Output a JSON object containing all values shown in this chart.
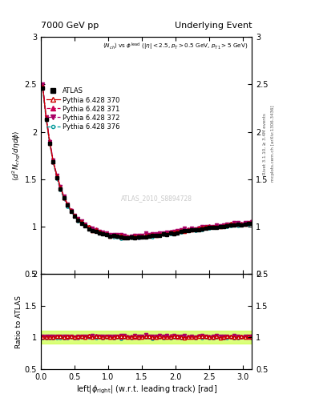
{
  "title_left": "7000 GeV pp",
  "title_right": "Underlying Event",
  "subtitle": "$\\langle N_{ch}\\rangle$ vs $\\phi^{\\rm lead}$ ($|\\eta| < 2.5, p_T > 0.5$ GeV, $p_{T1} > 5$ GeV)",
  "ylabel_main": "$\\langle d^2 N_{chg}/d\\eta d\\phi \\rangle$",
  "ylabel_ratio": "Ratio to ATLAS",
  "xlabel": "left$|\\phi_{\\rm right}|$ (w.r.t. leading track) [rad]",
  "watermark": "ATLAS_2010_S8894728",
  "right_label1": "Rivet 3.1.10, ≥ 3.4M events",
  "right_label2": "mcplots.cern.ch [arXiv:1306.3436]",
  "ylim_main": [
    0.5,
    3.0
  ],
  "ylim_ratio": [
    0.5,
    2.0
  ],
  "xlim": [
    0.0,
    3.14159
  ],
  "ratio_band_lo": 0.9,
  "ratio_band_hi": 1.1,
  "ratio_band_color": "#ccff44",
  "ratio_band_alpha": 0.7,
  "series_labels": [
    "ATLAS",
    "Pythia 6.428 370",
    "Pythia 6.428 371",
    "Pythia 6.428 372",
    "Pythia 6.428 376"
  ],
  "series_colors": [
    "#000000",
    "#cc0000",
    "#cc0055",
    "#aa0066",
    "#009999"
  ],
  "series_markers": [
    "s",
    "^",
    "^",
    "v",
    "o"
  ],
  "series_linestyles": [
    "none",
    "-",
    "--",
    "-.",
    "--"
  ],
  "series_filled": [
    true,
    false,
    true,
    true,
    false
  ]
}
